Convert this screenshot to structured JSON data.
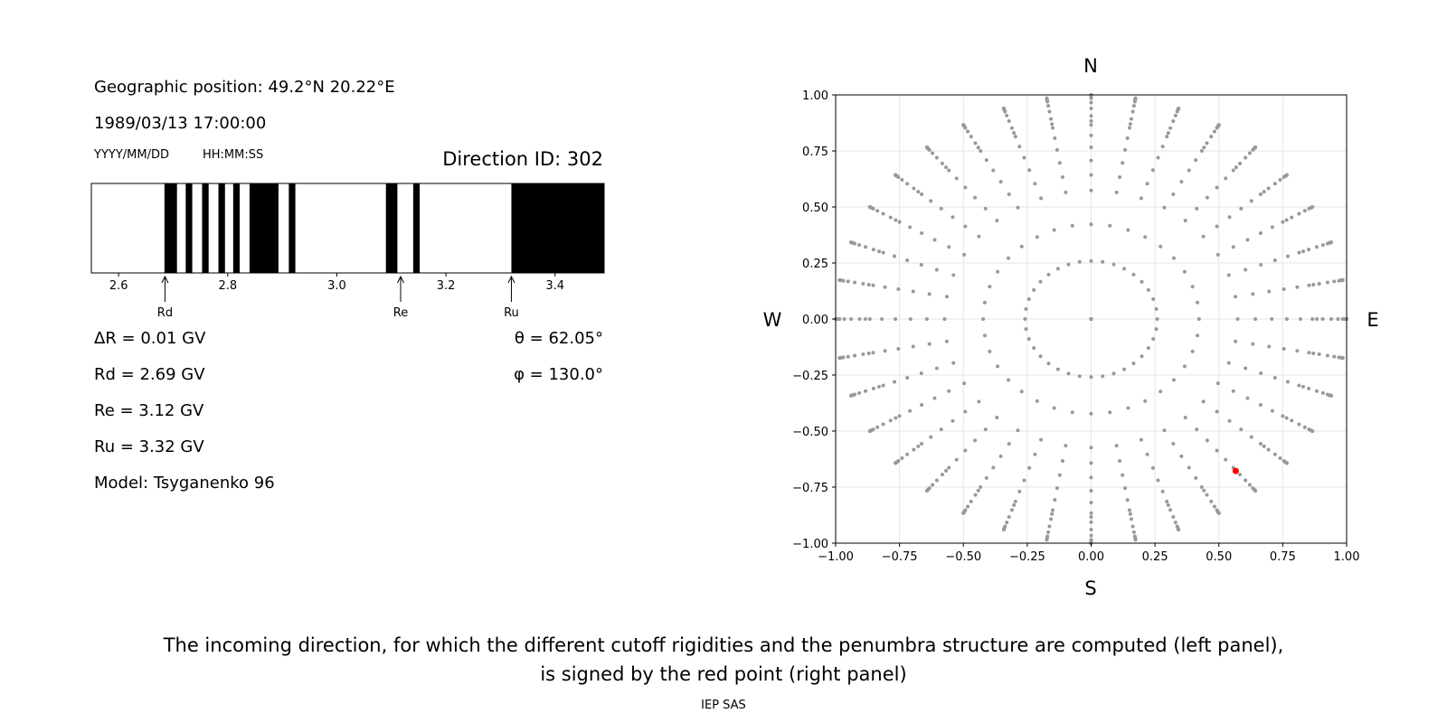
{
  "left_panel": {
    "geo_position": "Geographic position: 49.2°N 20.22°E",
    "datetime": "1989/03/13 17:00:00",
    "date_format": "YYYY/MM/DD",
    "time_format": "HH:MM:SS",
    "direction_id": "Direction ID: 302",
    "delta_r": "ΔR = 0.01 GV",
    "rd": "Rd = 2.69 GV",
    "re": "Re = 3.12 GV",
    "ru": "Ru = 3.32 GV",
    "model": "Model: Tsyganenko 96",
    "theta": "θ = 62.05°",
    "phi": "φ = 130.0°"
  },
  "chart_data": [
    {
      "type": "bar",
      "title": "",
      "xlim": [
        2.55,
        3.49
      ],
      "x_ticks": [
        2.6,
        2.8,
        3.0,
        3.2,
        3.4
      ],
      "x_tick_labels": [
        "2.6",
        "2.8",
        "3.0",
        "3.2",
        "3.4"
      ],
      "forbidden_intervals": [
        [
          2.684,
          2.707
        ],
        [
          2.723,
          2.735
        ],
        [
          2.753,
          2.765
        ],
        [
          2.783,
          2.795
        ],
        [
          2.81,
          2.822
        ],
        [
          2.84,
          2.893
        ],
        [
          2.912,
          2.924
        ],
        [
          3.09,
          3.111
        ],
        [
          3.14,
          3.152
        ],
        [
          3.32,
          3.49
        ]
      ],
      "markers": [
        {
          "label": "Rd",
          "x": 2.685
        },
        {
          "label": "Re",
          "x": 3.117
        },
        {
          "label": "Ru",
          "x": 3.32
        }
      ]
    },
    {
      "type": "scatter",
      "title": "",
      "xlim": [
        -1.0,
        1.0
      ],
      "ylim": [
        -1.0,
        1.0
      ],
      "x_ticks": [
        -1.0,
        -0.75,
        -0.5,
        -0.25,
        0.0,
        0.25,
        0.5,
        0.75,
        1.0
      ],
      "x_tick_labels": [
        "−1.00",
        "−0.75",
        "−0.50",
        "−0.25",
        "0.00",
        "0.25",
        "0.50",
        "0.75",
        "1.00"
      ],
      "y_ticks": [
        1.0,
        0.75,
        0.5,
        0.25,
        0.0,
        -0.25,
        -0.5,
        -0.75,
        -1.0
      ],
      "y_tick_labels": [
        "1.00",
        "0.75",
        "0.50",
        "0.25",
        "0.00",
        "−0.25",
        "−0.50",
        "−0.75",
        "−1.00"
      ],
      "grid": true,
      "compass": {
        "north": "N",
        "south": "S",
        "east": "E",
        "west": "W"
      },
      "directions": {
        "zenith_angles_deg": [
          0,
          15,
          25,
          35,
          40,
          45,
          50,
          55,
          60,
          62.05,
          65,
          70,
          75,
          80,
          83,
          85,
          87,
          89,
          90
        ],
        "azimuths_deg": [
          0,
          10,
          20,
          30,
          40,
          50,
          60,
          70,
          80,
          90,
          100,
          110,
          120,
          130,
          140,
          150,
          160,
          170,
          180,
          190,
          200,
          210,
          220,
          230,
          240,
          250,
          260,
          270,
          280,
          290,
          300,
          310,
          320,
          330,
          340,
          350
        ],
        "point_color": "#999999"
      },
      "highlight": {
        "x": 0.566,
        "y": -0.678,
        "color": "#ff0000"
      }
    }
  ],
  "caption": {
    "line1": "The incoming direction, for which the different cutoff rigidities and the penumbra structure are computed (left panel),",
    "line2": "is signed by the red point (right panel)"
  },
  "footer": "IEP SAS"
}
